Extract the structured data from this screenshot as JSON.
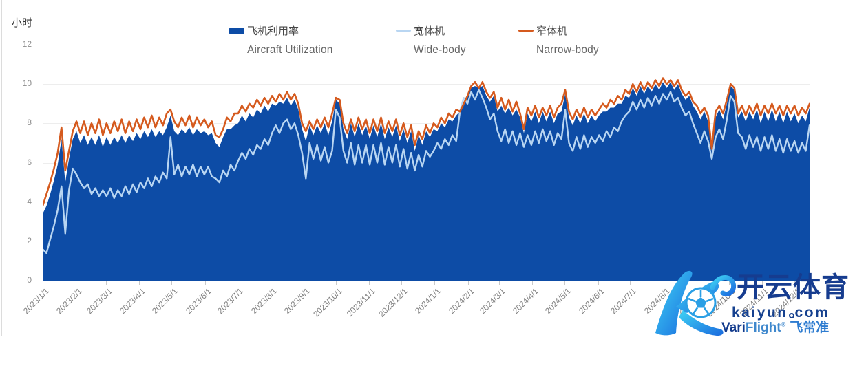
{
  "y_axis": {
    "title": "小时",
    "ticks": [
      0,
      2,
      4,
      6,
      8,
      10,
      12
    ]
  },
  "x_axis": {
    "labels": [
      "2023/1/1",
      "2023/2/1",
      "2023/3/1",
      "2023/4/1",
      "2023/5/1",
      "2023/6/1",
      "2023/7/1",
      "2023/8/1",
      "2023/9/1",
      "2023/10/1",
      "2023/11/1",
      "2023/12/1",
      "2024/1/1",
      "2024/2/1",
      "2024/3/1",
      "2024/4/1",
      "2024/5/1",
      "2024/6/1",
      "2024/7/1",
      "2024/8/1",
      "2024/9/1",
      "2024/10/1",
      "2024/11/1",
      "2024/12/1"
    ]
  },
  "legend": {
    "items": [
      {
        "zh": "飞机利用率",
        "en": "Aircraft Utilization",
        "swatch": "area",
        "color": "#0d4ca6"
      },
      {
        "zh": "宽体机",
        "en": "Wide-body",
        "swatch": "line",
        "color": "#b9d6f2"
      },
      {
        "zh": "窄体机",
        "en": "Narrow-body",
        "swatch": "line",
        "color": "#d55a1e"
      }
    ]
  },
  "watermark": {
    "brand": "开云体育",
    "domain_name": "kaiyun",
    "domain_tld": "com",
    "vari": "Vari",
    "flight": "Flight",
    "reg": "®",
    "zh": "飞常准"
  },
  "chart_data": {
    "type": "area+line",
    "title": "",
    "xlabel": "",
    "ylabel": "小时",
    "ylim": [
      0,
      12
    ],
    "grid": true,
    "legend_position": "top",
    "start_date": "2023/1/1",
    "end_date": "2024/12/18",
    "days_per_point": 3.5,
    "x_tick_labels": [
      "2023/1/1",
      "2023/2/1",
      "2023/3/1",
      "2023/4/1",
      "2023/5/1",
      "2023/6/1",
      "2023/7/1",
      "2023/8/1",
      "2023/9/1",
      "2023/10/1",
      "2023/11/1",
      "2023/12/1",
      "2024/1/1",
      "2024/2/1",
      "2024/3/1",
      "2024/4/1",
      "2024/5/1",
      "2024/6/1",
      "2024/7/1",
      "2024/8/1",
      "2024/9/1",
      "2024/10/1",
      "2024/11/1",
      "2024/12/1"
    ],
    "series": [
      {
        "name": "飞机利用率 Aircraft Utilization",
        "type": "area",
        "color": "#0d4ca6",
        "values": [
          3.4,
          3.8,
          4.4,
          5.1,
          5.9,
          7.2,
          5.0,
          6.2,
          7.2,
          7.6,
          7.0,
          7.4,
          6.9,
          7.3,
          6.9,
          7.4,
          6.8,
          7.3,
          6.9,
          7.3,
          7.0,
          7.4,
          7.0,
          7.4,
          7.1,
          7.5,
          7.2,
          7.6,
          7.3,
          7.7,
          7.3,
          7.6,
          7.4,
          7.8,
          8.4,
          7.6,
          7.4,
          7.7,
          7.5,
          7.8,
          7.4,
          7.7,
          7.5,
          7.6,
          7.4,
          7.5,
          7.0,
          6.8,
          7.3,
          7.7,
          7.7,
          7.9,
          8.0,
          8.4,
          8.1,
          8.5,
          8.3,
          8.7,
          8.5,
          8.9,
          8.6,
          9.0,
          8.9,
          9.1,
          9.0,
          9.3,
          8.9,
          9.2,
          8.7,
          7.7,
          7.1,
          7.9,
          7.4,
          7.9,
          7.5,
          8.0,
          7.4,
          8.1,
          9.2,
          9.0,
          7.7,
          7.2,
          8.0,
          7.3,
          8.0,
          7.4,
          7.9,
          7.2,
          7.9,
          7.3,
          8.0,
          7.2,
          7.8,
          7.3,
          7.9,
          7.1,
          7.7,
          7.0,
          7.6,
          6.6,
          7.4,
          6.9,
          7.6,
          7.3,
          7.7,
          7.6,
          8.0,
          7.8,
          8.2,
          8.1,
          8.4,
          8.6,
          9.1,
          9.3,
          9.8,
          9.9,
          9.8,
          9.9,
          9.4,
          9.1,
          9.4,
          8.6,
          8.9,
          8.5,
          8.8,
          8.4,
          8.7,
          8.3,
          7.5,
          8.5,
          8.1,
          8.6,
          8.0,
          8.6,
          8.1,
          8.6,
          8.0,
          8.5,
          8.6,
          9.5,
          8.3,
          7.9,
          8.4,
          8.0,
          8.5,
          8.0,
          8.4,
          8.1,
          8.4,
          8.6,
          8.6,
          8.8,
          8.8,
          9.0,
          9.0,
          9.4,
          9.3,
          9.8,
          9.4,
          9.9,
          9.5,
          9.9,
          9.6,
          10.0,
          9.7,
          10.1,
          9.8,
          10.1,
          9.7,
          10.0,
          9.5,
          9.2,
          9.4,
          8.9,
          8.6,
          8.2,
          8.6,
          8.1,
          6.6,
          8.3,
          8.7,
          8.2,
          9.0,
          9.9,
          9.7,
          8.3,
          8.6,
          8.1,
          8.6,
          8.2,
          8.7,
          8.0,
          8.6,
          8.1,
          8.7,
          8.1,
          8.6,
          8.0,
          8.6,
          8.1,
          8.5,
          8.0,
          8.4,
          8.1,
          8.8
        ]
      },
      {
        "name": "宽体机 Wide-body",
        "type": "line",
        "color": "#b9d6f2",
        "values": [
          1.6,
          1.4,
          2.1,
          2.8,
          3.6,
          4.8,
          2.4,
          4.6,
          5.7,
          5.4,
          5.0,
          4.7,
          4.9,
          4.4,
          4.7,
          4.3,
          4.6,
          4.3,
          4.7,
          4.2,
          4.6,
          4.3,
          4.8,
          4.4,
          4.9,
          4.5,
          5.0,
          4.7,
          5.2,
          4.8,
          5.3,
          5.0,
          5.5,
          5.2,
          7.3,
          5.4,
          5.9,
          5.3,
          5.8,
          5.4,
          5.9,
          5.3,
          5.8,
          5.4,
          5.8,
          5.3,
          5.2,
          5.0,
          5.6,
          5.3,
          5.9,
          5.6,
          6.1,
          6.5,
          6.2,
          6.7,
          6.4,
          6.9,
          6.7,
          7.2,
          6.9,
          7.5,
          7.9,
          7.5,
          8.0,
          8.2,
          7.7,
          8.0,
          7.4,
          6.5,
          5.2,
          7.0,
          6.2,
          6.9,
          6.1,
          6.8,
          6.0,
          6.6,
          8.7,
          8.3,
          6.6,
          6.0,
          7.0,
          5.9,
          6.9,
          6.0,
          6.9,
          5.9,
          6.9,
          6.0,
          7.0,
          5.9,
          6.8,
          6.0,
          6.9,
          5.8,
          6.7,
          5.7,
          6.5,
          5.6,
          6.4,
          5.8,
          6.6,
          6.3,
          6.6,
          7.0,
          6.7,
          7.2,
          6.9,
          7.4,
          7.1,
          8.6,
          9.3,
          9.0,
          9.6,
          9.2,
          9.7,
          9.3,
          8.8,
          8.2,
          8.5,
          7.6,
          7.1,
          7.7,
          7.0,
          7.6,
          6.9,
          7.5,
          6.8,
          7.4,
          6.9,
          7.6,
          7.0,
          7.7,
          7.1,
          7.6,
          6.9,
          7.5,
          7.2,
          8.7,
          7.0,
          6.6,
          7.3,
          6.7,
          7.4,
          6.8,
          7.3,
          7.0,
          7.4,
          7.1,
          7.6,
          7.3,
          7.8,
          7.6,
          8.1,
          8.4,
          8.6,
          9.1,
          8.7,
          9.2,
          8.8,
          9.3,
          8.9,
          9.4,
          9.0,
          9.5,
          9.2,
          9.6,
          9.1,
          9.3,
          8.8,
          8.4,
          8.6,
          8.0,
          7.5,
          7.0,
          7.6,
          7.1,
          6.2,
          7.3,
          7.7,
          7.2,
          8.2,
          9.4,
          9.1,
          7.5,
          7.3,
          6.7,
          7.4,
          6.8,
          7.3,
          6.6,
          7.3,
          6.7,
          7.4,
          6.6,
          7.2,
          6.5,
          7.2,
          6.6,
          7.1,
          6.5,
          7.0,
          6.6,
          7.9
        ]
      },
      {
        "name": "窄体机 Narrow-body",
        "type": "line",
        "color": "#d55a1e",
        "values": [
          3.8,
          4.4,
          5.0,
          5.7,
          6.5,
          7.8,
          5.6,
          6.6,
          7.6,
          8.1,
          7.5,
          8.1,
          7.4,
          8.0,
          7.5,
          8.2,
          7.4,
          8.0,
          7.5,
          8.1,
          7.6,
          8.2,
          7.5,
          8.1,
          7.6,
          8.2,
          7.7,
          8.3,
          7.8,
          8.4,
          7.8,
          8.3,
          7.9,
          8.5,
          8.7,
          8.1,
          7.8,
          8.3,
          7.9,
          8.4,
          7.8,
          8.3,
          7.9,
          8.2,
          7.8,
          8.1,
          7.4,
          7.3,
          7.7,
          8.3,
          8.1,
          8.5,
          8.5,
          8.9,
          8.6,
          9.0,
          8.8,
          9.2,
          8.9,
          9.3,
          9.0,
          9.4,
          9.1,
          9.5,
          9.2,
          9.6,
          9.2,
          9.5,
          9.0,
          8.0,
          7.6,
          8.1,
          7.7,
          8.2,
          7.8,
          8.3,
          7.8,
          8.5,
          9.3,
          9.2,
          8.0,
          7.5,
          8.2,
          7.6,
          8.3,
          7.7,
          8.2,
          7.5,
          8.2,
          7.6,
          8.3,
          7.5,
          8.1,
          7.6,
          8.2,
          7.4,
          8.0,
          7.3,
          7.9,
          6.9,
          7.6,
          7.2,
          7.9,
          7.5,
          8.0,
          7.8,
          8.3,
          8.0,
          8.5,
          8.3,
          8.7,
          8.6,
          9.0,
          9.4,
          9.9,
          10.1,
          9.8,
          10.1,
          9.6,
          9.3,
          9.6,
          8.8,
          9.3,
          8.7,
          9.2,
          8.6,
          9.1,
          8.5,
          7.7,
          8.8,
          8.4,
          8.9,
          8.3,
          8.8,
          8.4,
          8.9,
          8.3,
          8.8,
          9.0,
          9.7,
          8.6,
          8.2,
          8.7,
          8.3,
          8.8,
          8.3,
          8.7,
          8.4,
          8.7,
          9.0,
          8.8,
          9.2,
          9.0,
          9.4,
          9.2,
          9.7,
          9.5,
          10.0,
          9.6,
          10.1,
          9.7,
          10.1,
          9.8,
          10.2,
          9.9,
          10.3,
          10.0,
          10.2,
          9.9,
          10.2,
          9.7,
          9.4,
          9.6,
          9.1,
          8.9,
          8.5,
          8.8,
          8.4,
          6.7,
          8.6,
          8.9,
          8.5,
          9.2,
          10.0,
          9.8,
          8.5,
          8.9,
          8.4,
          8.9,
          8.5,
          9.0,
          8.4,
          8.9,
          8.5,
          9.0,
          8.5,
          8.9,
          8.4,
          8.9,
          8.5,
          8.9,
          8.4,
          8.8,
          8.5,
          9.0
        ]
      }
    ]
  }
}
